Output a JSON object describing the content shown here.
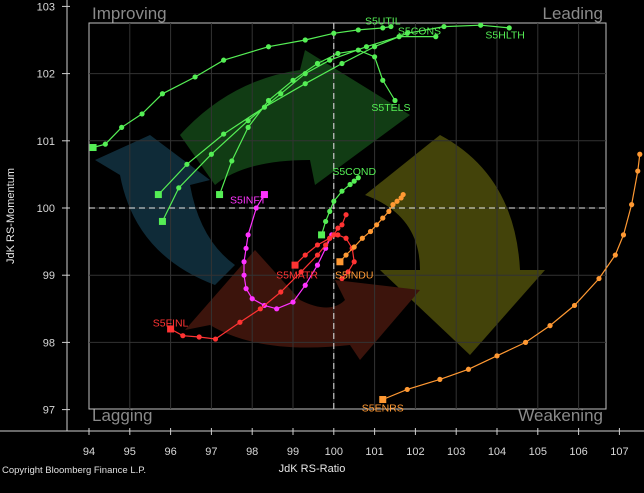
{
  "chart_data": {
    "type": "scatter",
    "xlabel": "JdK RS-Ratio",
    "ylabel": "JdK RS-Momentum",
    "xlim": [
      94,
      107.7
    ],
    "ylim": [
      97,
      103
    ],
    "x_ticks": [
      "94",
      "95",
      "96",
      "97",
      "98",
      "99",
      "100",
      "101",
      "102",
      "103",
      "104",
      "105",
      "106",
      "107"
    ],
    "y_ticks": [
      "97",
      "98",
      "99",
      "100",
      "101",
      "102",
      "103"
    ],
    "quadrants": {
      "top_left": "Improving",
      "top_right": "Leading",
      "bottom_left": "Lagging",
      "bottom_right": "Weakening"
    },
    "copyright": "Copyright Bloomberg Finance L.P.",
    "series": [
      {
        "name": "S5UTIL",
        "color": "#55ee55",
        "x": [
          94.1,
          94.4,
          94.8,
          95.3,
          95.8,
          96.6,
          97.3,
          98.4,
          99.3,
          100,
          100.6,
          101.2,
          101.4
        ],
        "y": [
          100.9,
          100.95,
          101.2,
          101.4,
          101.7,
          101.95,
          102.2,
          102.4,
          102.5,
          102.6,
          102.65,
          102.68,
          102.7
        ]
      },
      {
        "name": "S5CONS",
        "color": "#55ee55",
        "x": [
          95.8,
          96.2,
          97,
          97.9,
          98.7,
          99.3,
          99.9,
          100.8,
          101.6,
          102.5
        ],
        "y": [
          99.8,
          100.3,
          100.8,
          101.3,
          101.7,
          102,
          102.2,
          102.4,
          102.55,
          102.55
        ]
      },
      {
        "name": "S5HLTH",
        "color": "#55ee55",
        "x": [
          95.7,
          96.4,
          97.3,
          98.3,
          99.3,
          100.2,
          101,
          101.8,
          102.7,
          103.6,
          104.3
        ],
        "y": [
          100.2,
          100.65,
          101.1,
          101.5,
          101.85,
          102.15,
          102.4,
          102.6,
          102.7,
          102.72,
          102.68
        ]
      },
      {
        "name": "S5TELS",
        "color": "#55ee55",
        "x": [
          97.2,
          97.5,
          97.9,
          98.4,
          99,
          99.6,
          100.1,
          100.6,
          101,
          101.2,
          101.5
        ],
        "y": [
          100.2,
          100.7,
          101.2,
          101.6,
          101.9,
          102.15,
          102.3,
          102.35,
          102.25,
          101.9,
          101.6
        ]
      },
      {
        "name": "S5COND",
        "color": "#55ee55",
        "x": [
          99.7,
          99.8,
          99.9,
          100,
          100.2,
          100.4,
          100.5,
          100.6
        ],
        "y": [
          99.6,
          99.8,
          99.95,
          100.1,
          100.25,
          100.35,
          100.4,
          100.45
        ]
      },
      {
        "name": "S5INFT",
        "color": "#ff33ff",
        "x": [
          98.3,
          98.1,
          97.9,
          97.85,
          97.8,
          97.8,
          97.85,
          98,
          98.3,
          98.6,
          99,
          99.3,
          99.6,
          99.8,
          99.95
        ],
        "y": [
          100.2,
          100,
          99.6,
          99.4,
          99.2,
          99,
          98.8,
          98.65,
          98.55,
          98.5,
          98.6,
          98.85,
          99.15,
          99.4,
          99.6
        ]
      },
      {
        "name": "S5FINL",
        "color": "#ff3333",
        "x": [
          96,
          96.3,
          96.7,
          97.1,
          97.7,
          98.2,
          98.7,
          99.2,
          99.6,
          99.8,
          99.9,
          100,
          100.1,
          100.2,
          100.3
        ],
        "y": [
          98.2,
          98.1,
          98.08,
          98.05,
          98.3,
          98.5,
          98.75,
          99.05,
          99.3,
          99.45,
          99.55,
          99.6,
          99.7,
          99.75,
          99.9
        ]
      },
      {
        "name": "S5MATR",
        "color": "#ff3333",
        "x": [
          99.05,
          99.3,
          99.6,
          99.9,
          100.1,
          100.3,
          100.45,
          100.5,
          100.35,
          100.2
        ],
        "y": [
          99.15,
          99.3,
          99.45,
          99.55,
          99.6,
          99.55,
          99.4,
          99.2,
          99.05,
          98.95
        ]
      },
      {
        "name": "S5INDU",
        "color": "#ff9933",
        "x": [
          100.15,
          100.3,
          100.5,
          100.7,
          100.9,
          101.05,
          101.2,
          101.35,
          101.45,
          101.55,
          101.65,
          101.7
        ],
        "y": [
          99.2,
          99.3,
          99.42,
          99.55,
          99.65,
          99.75,
          99.85,
          99.95,
          100.05,
          100.1,
          100.15,
          100.2
        ]
      },
      {
        "name": "S5ENRS",
        "color": "#ff9933",
        "x": [
          101.2,
          101.8,
          102.6,
          103.3,
          104,
          104.7,
          105.3,
          105.9,
          106.5,
          106.9,
          107.1,
          107.3,
          107.45,
          107.5
        ],
        "y": [
          97.15,
          97.3,
          97.45,
          97.6,
          97.8,
          98,
          98.25,
          98.55,
          98.95,
          99.3,
          99.6,
          100.05,
          100.55,
          100.8
        ]
      }
    ],
    "labels": [
      {
        "series": "S5UTIL",
        "text": "S5UTIL",
        "x": 101.2,
        "y": 102.73
      },
      {
        "series": "S5CONS",
        "text": "S5CONS",
        "x": 102.1,
        "y": 102.58
      },
      {
        "series": "S5HLTH",
        "text": "S5HLTH",
        "x": 104.2,
        "y": 102.52
      },
      {
        "series": "S5TELS",
        "text": "S5TELS",
        "x": 101.4,
        "y": 101.44
      },
      {
        "series": "S5COND",
        "text": "S5COND",
        "x": 100.5,
        "y": 100.49
      },
      {
        "series": "S5INFT",
        "text": "S5INFT",
        "x": 97.9,
        "y": 100.07
      },
      {
        "series": "S5FINL",
        "text": "S5FINL",
        "x": 96,
        "y": 98.24
      },
      {
        "series": "S5MATR",
        "text": "S5MATR",
        "x": 99.1,
        "y": 98.95
      },
      {
        "series": "S5INDU",
        "text": "S5INDU",
        "x": 100.5,
        "y": 98.95
      },
      {
        "series": "S5ENRS",
        "text": "S5ENRS",
        "x": 101.2,
        "y": 96.97
      }
    ]
  }
}
